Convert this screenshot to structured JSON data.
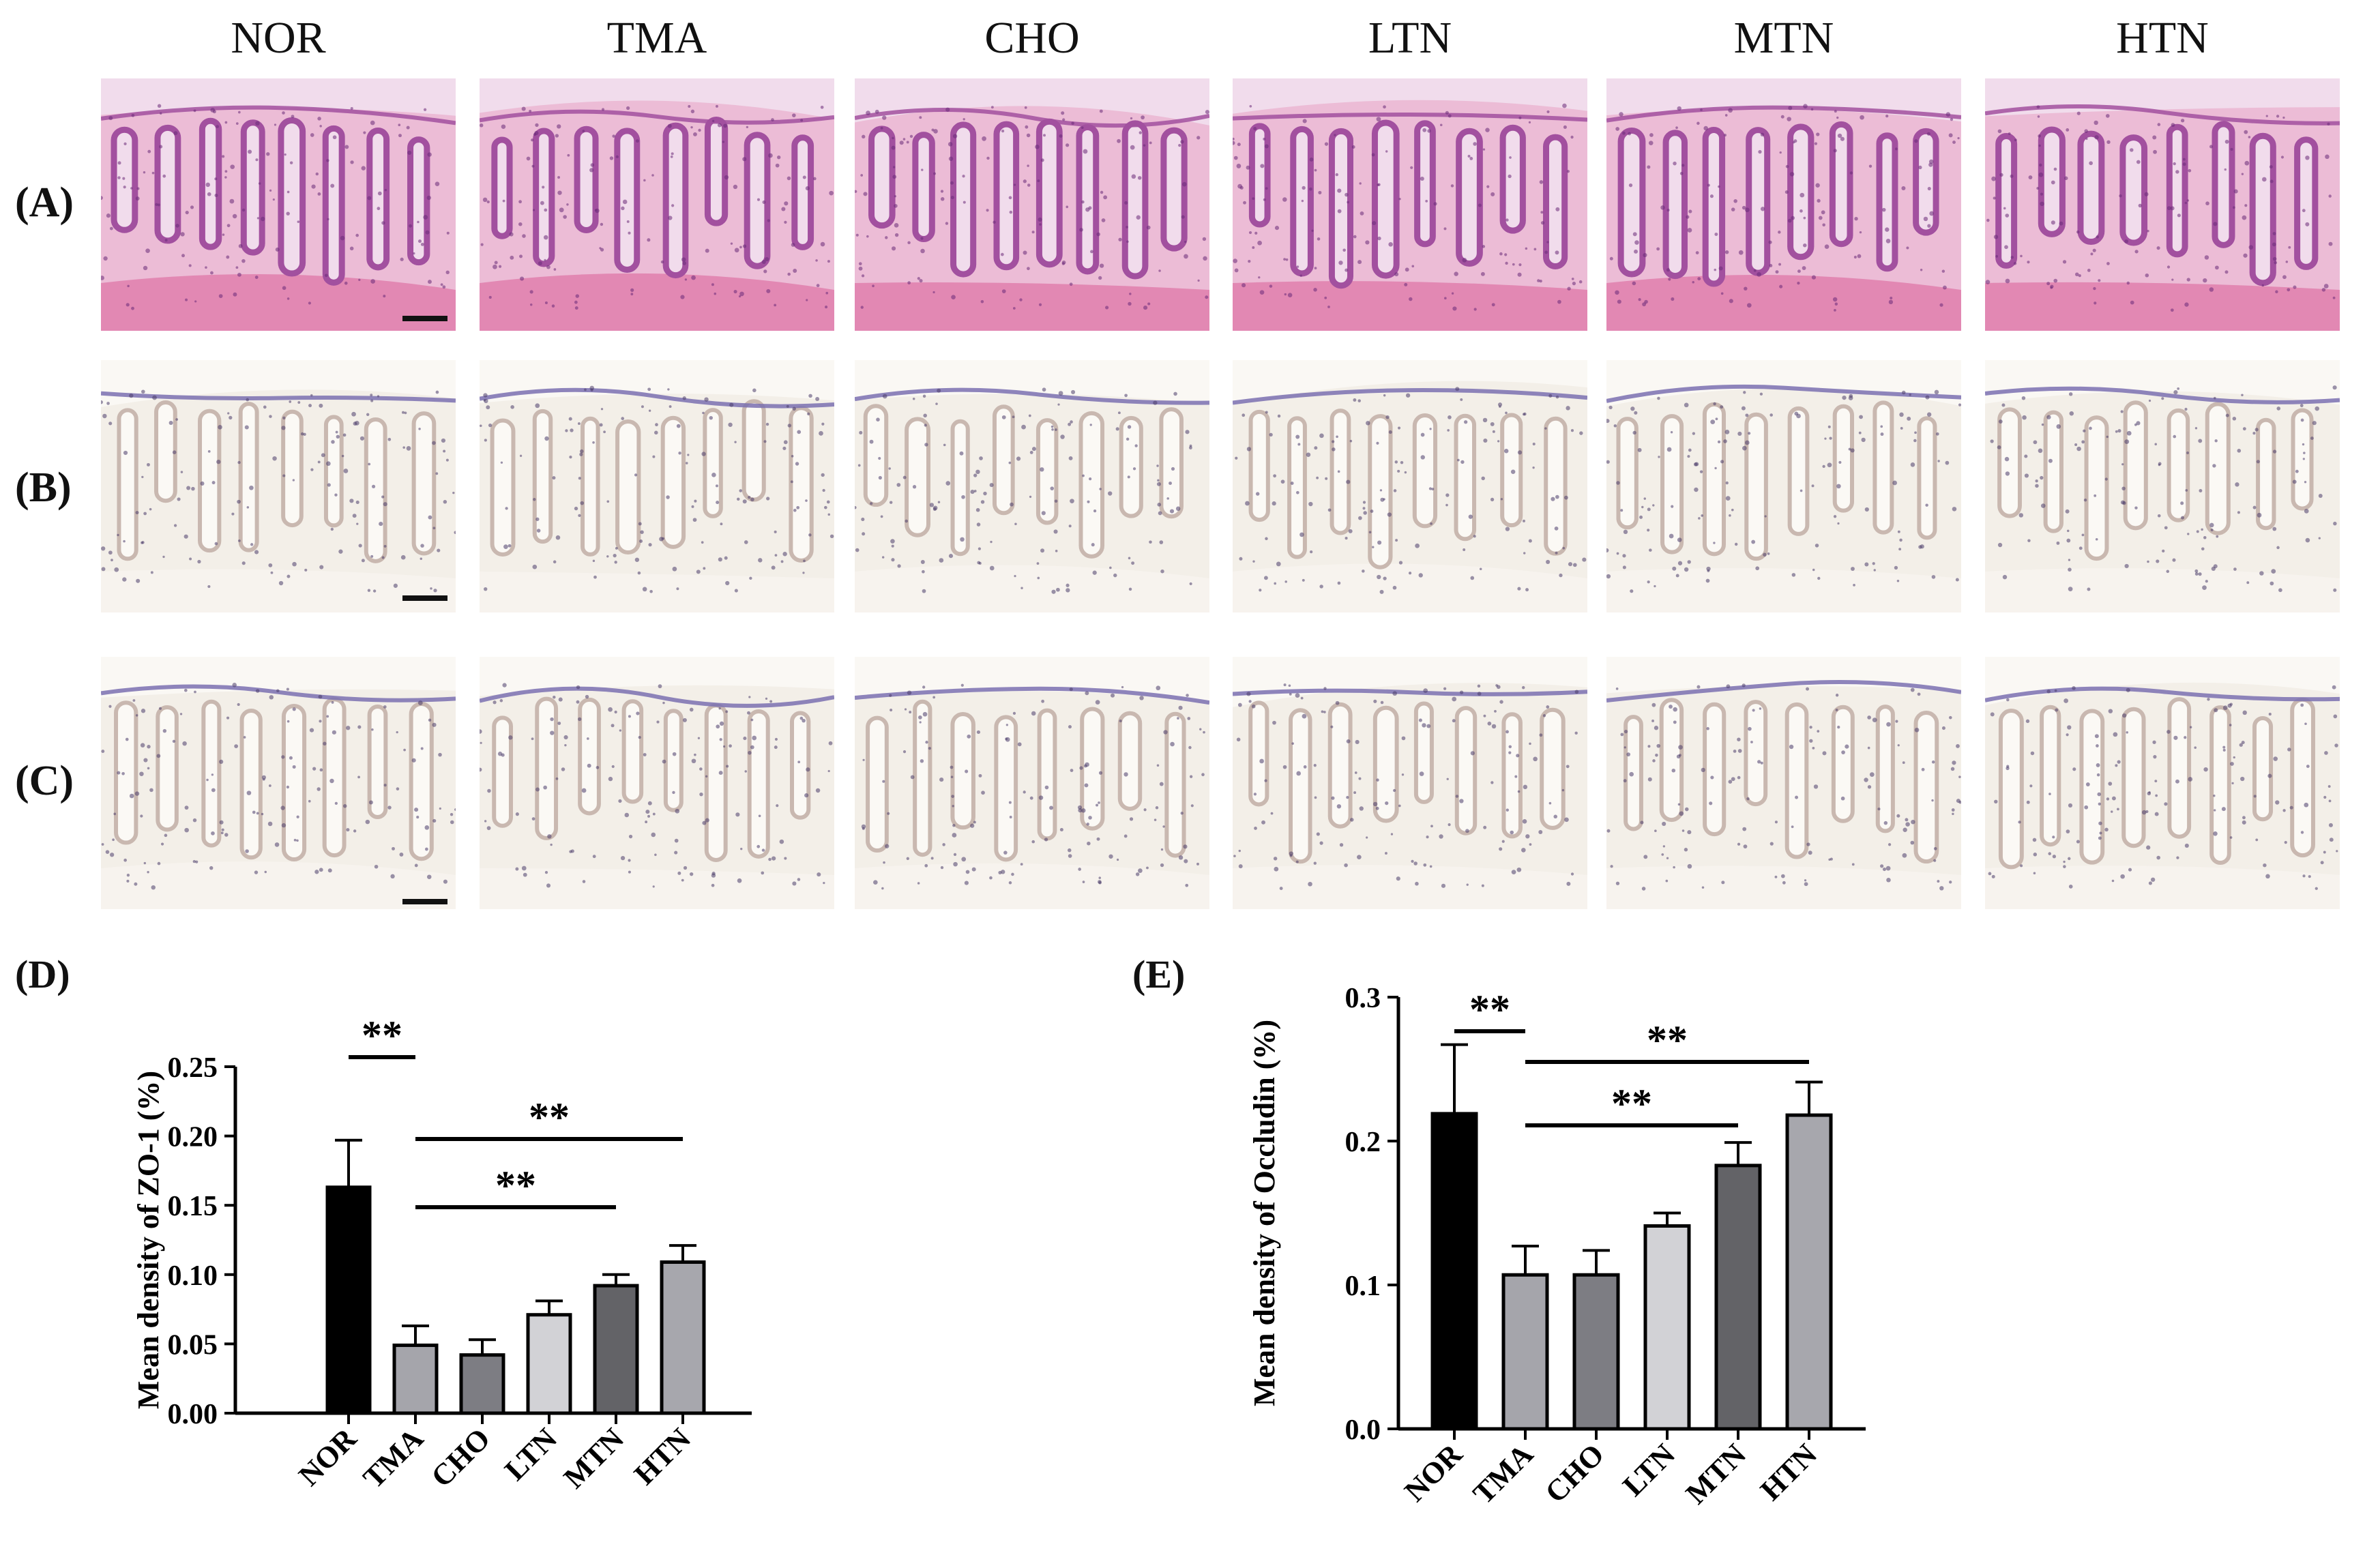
{
  "groups": [
    "NOR",
    "TMA",
    "CHO",
    "LTN",
    "MTN",
    "HTN"
  ],
  "rows": [
    {
      "label": "(A)",
      "stain": "he"
    },
    {
      "label": "(B)",
      "stain": "ihc"
    },
    {
      "label": "(C)",
      "stain": "ihc"
    }
  ],
  "colors": {
    "he_bg": "#ecbcd6",
    "he_crypt": "#a2509f",
    "he_lumen": "#f1dcec",
    "he_muscle": "#e07aaa",
    "ihc_bg": "#f3efe8",
    "ihc_crypt": "#c9b8b0",
    "ihc_edge": "#7a70b0",
    "ihc_nucleus": "#4a3c6a"
  },
  "chart_data": [
    {
      "panel": "(D)",
      "type": "bar",
      "categories": [
        "NOR",
        "TMA",
        "CHO",
        "LTN",
        "MTN",
        "HTN"
      ],
      "series": [
        {
          "values": [
            0.163,
            0.049,
            0.042,
            0.071,
            0.092,
            0.109
          ]
        }
      ],
      "error": [
        0.034,
        0.014,
        0.011,
        0.01,
        0.008,
        0.012
      ],
      "bar_colors": [
        "#000000",
        "#a5a5ab",
        "#7d7d83",
        "#d2d2d6",
        "#636367",
        "#a7a7ad"
      ],
      "ylabel": "Mean density of ZO-1 (%)",
      "ylim": [
        0,
        0.25
      ],
      "yticks": [
        "0.00",
        "0.05",
        "0.10",
        "0.15",
        "0.20",
        "0.25"
      ],
      "significance": [
        {
          "from": "NOR",
          "to": "TMA",
          "label": "**"
        },
        {
          "from": "TMA",
          "to": "MTN",
          "label": "**"
        },
        {
          "from": "TMA",
          "to": "HTN",
          "label": "**"
        }
      ]
    },
    {
      "panel": "(E)",
      "type": "bar",
      "categories": [
        "NOR",
        "TMA",
        "CHO",
        "LTN",
        "MTN",
        "HTN"
      ],
      "series": [
        {
          "values": [
            0.219,
            0.107,
            0.107,
            0.141,
            0.183,
            0.218
          ]
        }
      ],
      "error": [
        0.048,
        0.02,
        0.017,
        0.009,
        0.016,
        0.023
      ],
      "bar_colors": [
        "#000000",
        "#a5a5ab",
        "#7d7d83",
        "#d2d2d6",
        "#636367",
        "#a7a7ad"
      ],
      "ylabel": "Mean density of Occludin (%)",
      "ylim": [
        0,
        0.3
      ],
      "yticks": [
        "0.0",
        "0.1",
        "0.2",
        "0.3"
      ],
      "significance": [
        {
          "from": "NOR",
          "to": "TMA",
          "label": "**"
        },
        {
          "from": "TMA",
          "to": "MTN",
          "label": "**"
        },
        {
          "from": "TMA",
          "to": "HTN",
          "label": "**"
        }
      ]
    }
  ]
}
